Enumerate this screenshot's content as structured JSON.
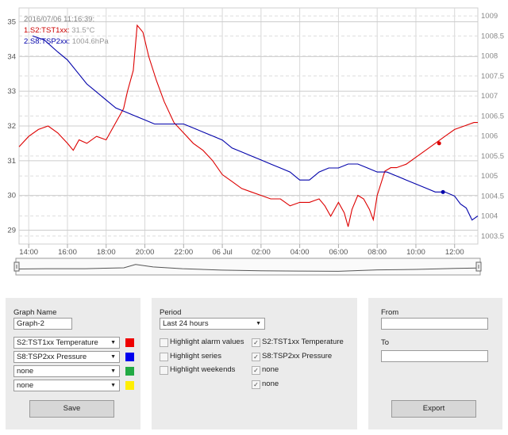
{
  "chart_data": {
    "type": "line",
    "tooltip": {
      "timestamp": "2016/07/06 11:16:39:",
      "entries": [
        {
          "label": "1.S2:TST1xx:",
          "value": "31.5°C",
          "color": "#cc0000"
        },
        {
          "label": "2.S8:TSP2xx:",
          "value": "1004.6hPa",
          "color": "#0000aa"
        }
      ]
    },
    "x_ticks": [
      "14:00",
      "16:00",
      "18:00",
      "20:00",
      "22:00",
      "06 Jul",
      "02:00",
      "04:00",
      "06:00",
      "08:00",
      "10:00",
      "12:00"
    ],
    "x_tick_hours": [
      14,
      16,
      18,
      20,
      22,
      24,
      26,
      28,
      30,
      32,
      34,
      36
    ],
    "xlim": [
      13.5,
      37.2
    ],
    "left_axis": {
      "ticks": [
        "35",
        "34",
        "33",
        "32",
        "31",
        "30",
        "29"
      ],
      "ylim": [
        28.6,
        35.4
      ]
    },
    "right_axis": {
      "ticks": [
        "1009",
        "1008.5",
        "1008",
        "1007.5",
        "1007",
        "1006.5",
        "1006",
        "1005.5",
        "1005",
        "1004.5",
        "1004",
        "1003.5"
      ],
      "ylim": [
        1003.3,
        1009.2
      ]
    },
    "series": [
      {
        "name": "S2:TST1xx Temperature",
        "color": "#dd0000",
        "axis": "left",
        "x": [
          13.5,
          14,
          14.5,
          15,
          15.5,
          16,
          16.3,
          16.6,
          17,
          17.5,
          18,
          18.5,
          18.9,
          19.1,
          19.4,
          19.6,
          19.9,
          20.2,
          20.6,
          21,
          21.5,
          22,
          22.5,
          23,
          23.5,
          24,
          24.5,
          25,
          25.5,
          26,
          26.5,
          27,
          27.5,
          28,
          28.5,
          29,
          29.3,
          29.6,
          30,
          30.3,
          30.5,
          30.7,
          31,
          31.3,
          31.6,
          31.8,
          32,
          32.4,
          32.7,
          33,
          33.5,
          34,
          34.5,
          35,
          35.5,
          36,
          36.5,
          37,
          37.2
        ],
        "y": [
          31.4,
          31.7,
          31.9,
          32.0,
          31.8,
          31.5,
          31.3,
          31.6,
          31.5,
          31.7,
          31.6,
          32.1,
          32.5,
          33.0,
          33.6,
          34.9,
          34.7,
          34.0,
          33.3,
          32.7,
          32.1,
          31.8,
          31.5,
          31.3,
          31.0,
          30.6,
          30.4,
          30.2,
          30.1,
          30.0,
          29.9,
          29.9,
          29.7,
          29.8,
          29.8,
          29.9,
          29.7,
          29.4,
          29.8,
          29.5,
          29.1,
          29.6,
          30.0,
          29.9,
          29.6,
          29.3,
          30.0,
          30.7,
          30.8,
          30.8,
          30.9,
          31.1,
          31.3,
          31.5,
          31.7,
          31.9,
          32.0,
          32.1,
          32.1
        ],
        "marker": [
          35.2,
          31.5
        ]
      },
      {
        "name": "S8:TSP2xx Pressure",
        "color": "#0000aa",
        "axis": "right",
        "x": [
          14.2,
          14.8,
          15.5,
          16,
          16.5,
          17,
          17.5,
          18,
          18.5,
          19,
          19.5,
          20,
          20.5,
          21,
          21.5,
          22,
          22.5,
          23,
          23.5,
          24,
          24.5,
          25,
          25.5,
          26,
          26.5,
          27,
          27.5,
          28,
          28.5,
          29,
          29.5,
          30,
          30.5,
          31,
          31.5,
          32,
          32.5,
          33,
          33.5,
          34,
          34.5,
          35,
          35.5,
          36,
          36.3,
          36.6,
          36.9,
          37.2
        ],
        "y": [
          1008.5,
          1008.4,
          1008.1,
          1007.9,
          1007.6,
          1007.3,
          1007.1,
          1006.9,
          1006.7,
          1006.6,
          1006.5,
          1006.4,
          1006.3,
          1006.3,
          1006.3,
          1006.3,
          1006.2,
          1006.1,
          1006.0,
          1005.9,
          1005.7,
          1005.6,
          1005.5,
          1005.4,
          1005.3,
          1005.2,
          1005.1,
          1004.9,
          1004.9,
          1005.1,
          1005.2,
          1005.2,
          1005.3,
          1005.3,
          1005.2,
          1005.1,
          1005.1,
          1005.0,
          1004.9,
          1004.8,
          1004.7,
          1004.6,
          1004.6,
          1004.5,
          1004.3,
          1004.2,
          1003.9,
          1004.0
        ],
        "marker": [
          35.4,
          1004.6
        ]
      }
    ],
    "navigator": {
      "x": [
        13.5,
        15,
        17,
        19,
        19.6,
        20.5,
        22,
        24,
        26,
        28,
        30,
        32,
        34,
        36,
        37.2
      ],
      "y": [
        31.4,
        31.6,
        31.6,
        32.3,
        34.9,
        33.0,
        31.6,
        30.5,
        30.0,
        29.8,
        29.6,
        30.7,
        31.1,
        31.8,
        32.1
      ]
    }
  },
  "left_panel": {
    "graph_name_label": "Graph Name",
    "graph_name_value": "Graph-2",
    "series_selects": [
      {
        "value": "S2:TST1xx Temperature",
        "color": "#ee0000"
      },
      {
        "value": "S8:TSP2xx Pressure",
        "color": "#0000ee"
      },
      {
        "value": "none",
        "color": "#22aa44"
      },
      {
        "value": "none",
        "color": "#ffee00"
      }
    ],
    "save_label": "Save"
  },
  "middle_panel": {
    "period_label": "Period",
    "period_value": "Last 24 hours",
    "options": [
      {
        "label": "Highlight alarm values",
        "checked": false
      },
      {
        "label": "Highlight series",
        "checked": false
      },
      {
        "label": "Highlight weekends",
        "checked": false
      }
    ],
    "series_checks": [
      {
        "label": "S2:TST1xx Temperature",
        "checked": true
      },
      {
        "label": "S8:TSP2xx Pressure",
        "checked": true
      },
      {
        "label": "none",
        "checked": true
      },
      {
        "label": "none",
        "checked": true
      }
    ]
  },
  "right_panel": {
    "from_label": "From",
    "to_label": "To",
    "from_value": "",
    "to_value": "",
    "export_label": "Export"
  }
}
